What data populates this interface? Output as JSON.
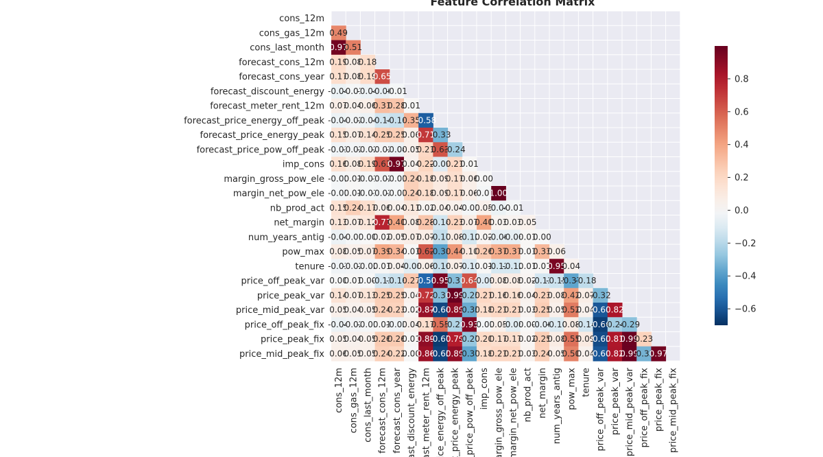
{
  "chart_data": {
    "type": "heatmap",
    "title": "Feature Correlation Matrix",
    "mask": "upper-triangle-including-diagonal",
    "colormap": "RdBu_r",
    "colorbar": {
      "range": [
        -0.7,
        1.0
      ],
      "ticks": [
        "0.8",
        "0.6",
        "0.4",
        "0.2",
        "0.0",
        "−0.2",
        "−0.4",
        "−0.6"
      ],
      "tick_values": [
        0.8,
        0.6,
        0.4,
        0.2,
        0.0,
        -0.2,
        -0.4,
        -0.6
      ]
    },
    "background_color": "#eaeaf2",
    "labels": [
      "cons_12m",
      "cons_gas_12m",
      "cons_last_month",
      "forecast_cons_12m",
      "forecast_cons_year",
      "forecast_discount_energy",
      "forecast_meter_rent_12m",
      "forecast_price_energy_off_peak",
      "forecast_price_energy_peak",
      "forecast_price_pow_off_peak",
      "imp_cons",
      "margin_gross_pow_ele",
      "margin_net_pow_ele",
      "nb_prod_act",
      "net_margin",
      "num_years_antig",
      "pow_max",
      "tenure",
      "price_off_peak_var",
      "price_peak_var",
      "price_mid_peak_var",
      "price_off_peak_fix",
      "price_peak_fix",
      "price_mid_peak_fix"
    ],
    "x_tick_labels": [
      "cons_12m",
      "cons_gas_12m",
      "cons_last_month",
      "forecast_cons_12m",
      "forecast_cons_year",
      "ast_discount_energy",
      "ast_meter_rent_12m",
      "ice_energy_off_peak",
      "t_price_energy_peak",
      "_price_pow_off_peak",
      "imp_cons",
      "argin_gross_pow_ele",
      "margin_net_pow_ele",
      "nb_prod_act",
      "net_margin",
      "num_years_antig",
      "pow_max",
      "tenure",
      "price_off_peak_var",
      "price_peak_var",
      "price_mid_peak_var",
      "price_off_peak_fix",
      "price_peak_fix",
      "price_mid_peak_fix"
    ],
    "rows": [
      [],
      [
        0.49
      ],
      [
        0.97,
        0.51
      ],
      [
        0.19,
        0.08,
        0.18
      ],
      [
        0.17,
        0.08,
        0.19,
        0.65
      ],
      [
        -0.04,
        -0.01,
        -0.04,
        -0.06,
        -0.01
      ],
      [
        0.07,
        0.04,
        0.06,
        0.31,
        0.28,
        0.01
      ],
      [
        -0.04,
        -0.02,
        -0.04,
        -0.14,
        -0.16,
        0.35,
        -0.58
      ],
      [
        0.15,
        0.07,
        0.14,
        0.25,
        0.25,
        0.06,
        0.71,
        -0.33
      ],
      [
        -0.03,
        -0.02,
        -0.02,
        -0.02,
        -0.04,
        0.05,
        0.21,
        0.63,
        -0.24
      ],
      [
        0.16,
        0.08,
        0.19,
        0.63,
        0.97,
        0.04,
        0.22,
        -0.09,
        0.21,
        0.01
      ],
      [
        -0.01,
        0.01,
        -0.01,
        -0.02,
        -0.01,
        0.24,
        0.18,
        0.09,
        0.17,
        0.06,
        0.0
      ],
      [
        -0.01,
        0.01,
        -0.01,
        -0.02,
        -0.01,
        0.24,
        0.18,
        0.09,
        0.17,
        0.06,
        -0.01,
        1.0
      ],
      [
        0.15,
        0.24,
        0.17,
        0.06,
        0.04,
        0.11,
        0.02,
        0.04,
        0.04,
        -0.01,
        0.05,
        -0.04,
        -0.01
      ],
      [
        0.13,
        0.07,
        0.12,
        0.77,
        0.4,
        0.08,
        0.28,
        -0.14,
        0.23,
        0.07,
        0.4,
        0.03,
        0.03,
        0.05
      ],
      [
        -0.04,
        -0.01,
        -0.0,
        0.02,
        0.05,
        0.07,
        0.07,
        -0.17,
        0.08,
        -0.12,
        0.02,
        -0.06,
        -0.06,
        0.01,
        -0.0
      ],
      [
        0.08,
        0.05,
        0.07,
        0.39,
        0.34,
        0.01,
        0.62,
        -0.38,
        0.44,
        0.1,
        0.26,
        0.37,
        0.37,
        0.01,
        0.33,
        0.06
      ],
      [
        -0.03,
        -0.02,
        -0.02,
        0.01,
        0.04,
        -0.08,
        0.06,
        -0.16,
        0.07,
        -0.1,
        0.01,
        -0.12,
        -0.12,
        0.01,
        0.01,
        0.95,
        0.04
      ],
      [
        0.0,
        0.01,
        0.0,
        -0.13,
        -0.16,
        0.27,
        -0.56,
        0.95,
        -0.3,
        0.64,
        -0.09,
        0.08,
        0.08,
        0.02,
        -0.13,
        -0.15,
        -0.37,
        -0.18
      ],
      [
        0.14,
        0.07,
        0.13,
        0.25,
        0.25,
        0.04,
        0.72,
        -0.3,
        0.99,
        -0.25,
        0.21,
        0.16,
        0.16,
        0.04,
        0.23,
        0.08,
        0.42,
        0.07,
        -0.32
      ],
      [
        0.05,
        0.04,
        0.05,
        0.24,
        0.23,
        0.02,
        0.87,
        -0.64,
        0.89,
        -0.35,
        0.18,
        0.21,
        0.21,
        0.03,
        0.25,
        0.05,
        0.52,
        0.04,
        -0.6,
        0.82
      ],
      [
        -0.04,
        -0.02,
        -0.01,
        0.01,
        -0.03,
        0.04,
        0.17,
        0.55,
        -0.21,
        0.93,
        -0.01,
        0.05,
        -0.08,
        0.0,
        -0.06,
        -0.1,
        0.08,
        -0.14,
        -0.66,
        -0.24,
        -0.29
      ],
      [
        0.05,
        0.04,
        0.05,
        0.26,
        0.26,
        0.01,
        0.89,
        -0.67,
        0.79,
        -0.27,
        0.2,
        0.17,
        0.17,
        0.02,
        0.25,
        0.08,
        0.55,
        0.09,
        -0.63,
        0.81,
        0.99,
        0.23
      ],
      [
        0.06,
        0.05,
        0.05,
        0.24,
        0.22,
        0.0,
        0.86,
        -0.65,
        0.89,
        -0.37,
        0.18,
        0.21,
        0.21,
        0.03,
        0.24,
        0.05,
        0.5,
        0.04,
        -0.6,
        0.82,
        0.99,
        -0.33,
        0.97
      ]
    ]
  }
}
